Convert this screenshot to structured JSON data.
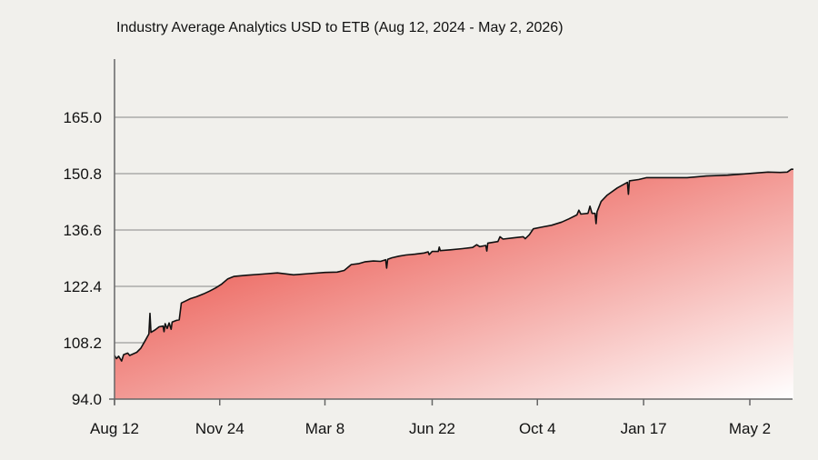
{
  "chart_data": {
    "type": "area",
    "title": "Industry Average Analytics  USD to ETB (Aug 12, 2024 - May 2,  2026)",
    "xlabel": "",
    "ylabel": "",
    "ylim": [
      94.0,
      179.2
    ],
    "yticks": [
      "94.0",
      "108.2",
      "122.4",
      "136.6",
      "150.8",
      "165.0"
    ],
    "xticks": [
      {
        "label": "Aug 12",
        "date": "2024-08-12"
      },
      {
        "label": "Nov 24",
        "date": "2024-11-24"
      },
      {
        "label": "Mar 8",
        "date": "2025-03-08"
      },
      {
        "label": "Jun 22",
        "date": "2025-06-22"
      },
      {
        "label": "Oct 4",
        "date": "2025-10-04"
      },
      {
        "label": "Jan 17",
        "date": "2026-01-17"
      },
      {
        "label": "May 2",
        "date": "2026-05-02"
      }
    ],
    "grid": true,
    "colors": {
      "fill_top": "#e63329",
      "fill_bottom": "#ffffff",
      "line": "#111111",
      "grid": "#888888"
    },
    "series": [
      {
        "points": [
          [
            "2024-08-12",
            105.0
          ],
          [
            "2024-08-14",
            104.2
          ],
          [
            "2024-08-16",
            104.8
          ],
          [
            "2024-08-19",
            103.6
          ],
          [
            "2024-08-21",
            105.2
          ],
          [
            "2024-08-25",
            105.6
          ],
          [
            "2024-08-27",
            105.0
          ],
          [
            "2024-09-03",
            105.8
          ],
          [
            "2024-09-07",
            106.8
          ],
          [
            "2024-09-11",
            108.6
          ],
          [
            "2024-09-15",
            110.4
          ],
          [
            "2024-09-16",
            115.6
          ],
          [
            "2024-09-17",
            110.8
          ],
          [
            "2024-09-21",
            111.4
          ],
          [
            "2024-09-25",
            112.2
          ],
          [
            "2024-09-29",
            112.4
          ],
          [
            "2024-09-30",
            111.0
          ],
          [
            "2024-10-01",
            113.0
          ],
          [
            "2024-10-03",
            111.8
          ],
          [
            "2024-10-05",
            113.2
          ],
          [
            "2024-10-07",
            111.6
          ],
          [
            "2024-10-08",
            113.4
          ],
          [
            "2024-10-12",
            113.8
          ],
          [
            "2024-10-15",
            114.0
          ],
          [
            "2024-10-17",
            118.2
          ],
          [
            "2024-10-22",
            118.8
          ],
          [
            "2024-10-26",
            119.3
          ],
          [
            "2024-11-01",
            119.8
          ],
          [
            "2024-11-08",
            120.5
          ],
          [
            "2024-11-14",
            121.2
          ],
          [
            "2024-11-20",
            122.0
          ],
          [
            "2024-11-26",
            123.0
          ],
          [
            "2024-12-02",
            124.3
          ],
          [
            "2024-12-08",
            124.9
          ],
          [
            "2024-12-20",
            125.2
          ],
          [
            "2025-01-05",
            125.5
          ],
          [
            "2025-01-20",
            125.8
          ],
          [
            "2025-02-05",
            125.3
          ],
          [
            "2025-02-20",
            125.6
          ],
          [
            "2025-03-08",
            125.9
          ],
          [
            "2025-03-20",
            126.0
          ],
          [
            "2025-03-27",
            126.4
          ],
          [
            "2025-04-03",
            127.9
          ],
          [
            "2025-04-10",
            128.1
          ],
          [
            "2025-04-17",
            128.6
          ],
          [
            "2025-04-25",
            128.8
          ],
          [
            "2025-05-02",
            128.7
          ],
          [
            "2025-05-07",
            129.1
          ],
          [
            "2025-05-08",
            127.0
          ],
          [
            "2025-05-09",
            129.2
          ],
          [
            "2025-05-13",
            129.6
          ],
          [
            "2025-05-20",
            130.0
          ],
          [
            "2025-05-27",
            130.3
          ],
          [
            "2025-06-05",
            130.5
          ],
          [
            "2025-06-14",
            130.8
          ],
          [
            "2025-06-18",
            131.1
          ],
          [
            "2025-06-19",
            130.4
          ],
          [
            "2025-06-22",
            131.2
          ],
          [
            "2025-06-28",
            131.2
          ],
          [
            "2025-06-29",
            132.3
          ],
          [
            "2025-06-30",
            131.4
          ],
          [
            "2025-07-10",
            131.6
          ],
          [
            "2025-07-22",
            131.9
          ],
          [
            "2025-08-01",
            132.2
          ],
          [
            "2025-08-05",
            132.9
          ],
          [
            "2025-08-08",
            132.4
          ],
          [
            "2025-08-14",
            132.7
          ],
          [
            "2025-08-15",
            131.3
          ],
          [
            "2025-08-16",
            133.3
          ],
          [
            "2025-08-26",
            133.7
          ],
          [
            "2025-08-28",
            134.9
          ],
          [
            "2025-08-31",
            134.3
          ],
          [
            "2025-09-10",
            134.6
          ],
          [
            "2025-09-20",
            134.9
          ],
          [
            "2025-09-22",
            134.4
          ],
          [
            "2025-09-26",
            135.4
          ],
          [
            "2025-09-30",
            136.9
          ],
          [
            "2025-10-08",
            137.3
          ],
          [
            "2025-10-18",
            137.8
          ],
          [
            "2025-10-28",
            138.6
          ],
          [
            "2025-11-04",
            139.4
          ],
          [
            "2025-11-12",
            140.4
          ],
          [
            "2025-11-14",
            141.6
          ],
          [
            "2025-11-16",
            140.6
          ],
          [
            "2025-11-23",
            140.8
          ],
          [
            "2025-11-25",
            142.6
          ],
          [
            "2025-11-27",
            140.8
          ],
          [
            "2025-11-30",
            140.8
          ],
          [
            "2025-12-01",
            138.2
          ],
          [
            "2025-12-02",
            141.2
          ],
          [
            "2025-12-06",
            143.8
          ],
          [
            "2025-12-12",
            145.4
          ],
          [
            "2025-12-22",
            147.2
          ],
          [
            "2026-01-01",
            148.6
          ],
          [
            "2026-01-02",
            145.6
          ],
          [
            "2026-01-03",
            149.0
          ],
          [
            "2026-01-12",
            149.3
          ],
          [
            "2026-01-20",
            149.8
          ],
          [
            "2026-02-10",
            149.8
          ],
          [
            "2026-03-01",
            149.8
          ],
          [
            "2026-03-20",
            150.2
          ],
          [
            "2026-04-10",
            150.4
          ],
          [
            "2026-04-25",
            150.7
          ],
          [
            "2026-05-05",
            150.9
          ],
          [
            "2026-05-20",
            151.2
          ],
          [
            "2026-06-01",
            151.1
          ],
          [
            "2026-06-08",
            151.2
          ],
          [
            "2026-06-12",
            151.9
          ],
          [
            "2026-06-14",
            151.9
          ]
        ]
      }
    ]
  }
}
